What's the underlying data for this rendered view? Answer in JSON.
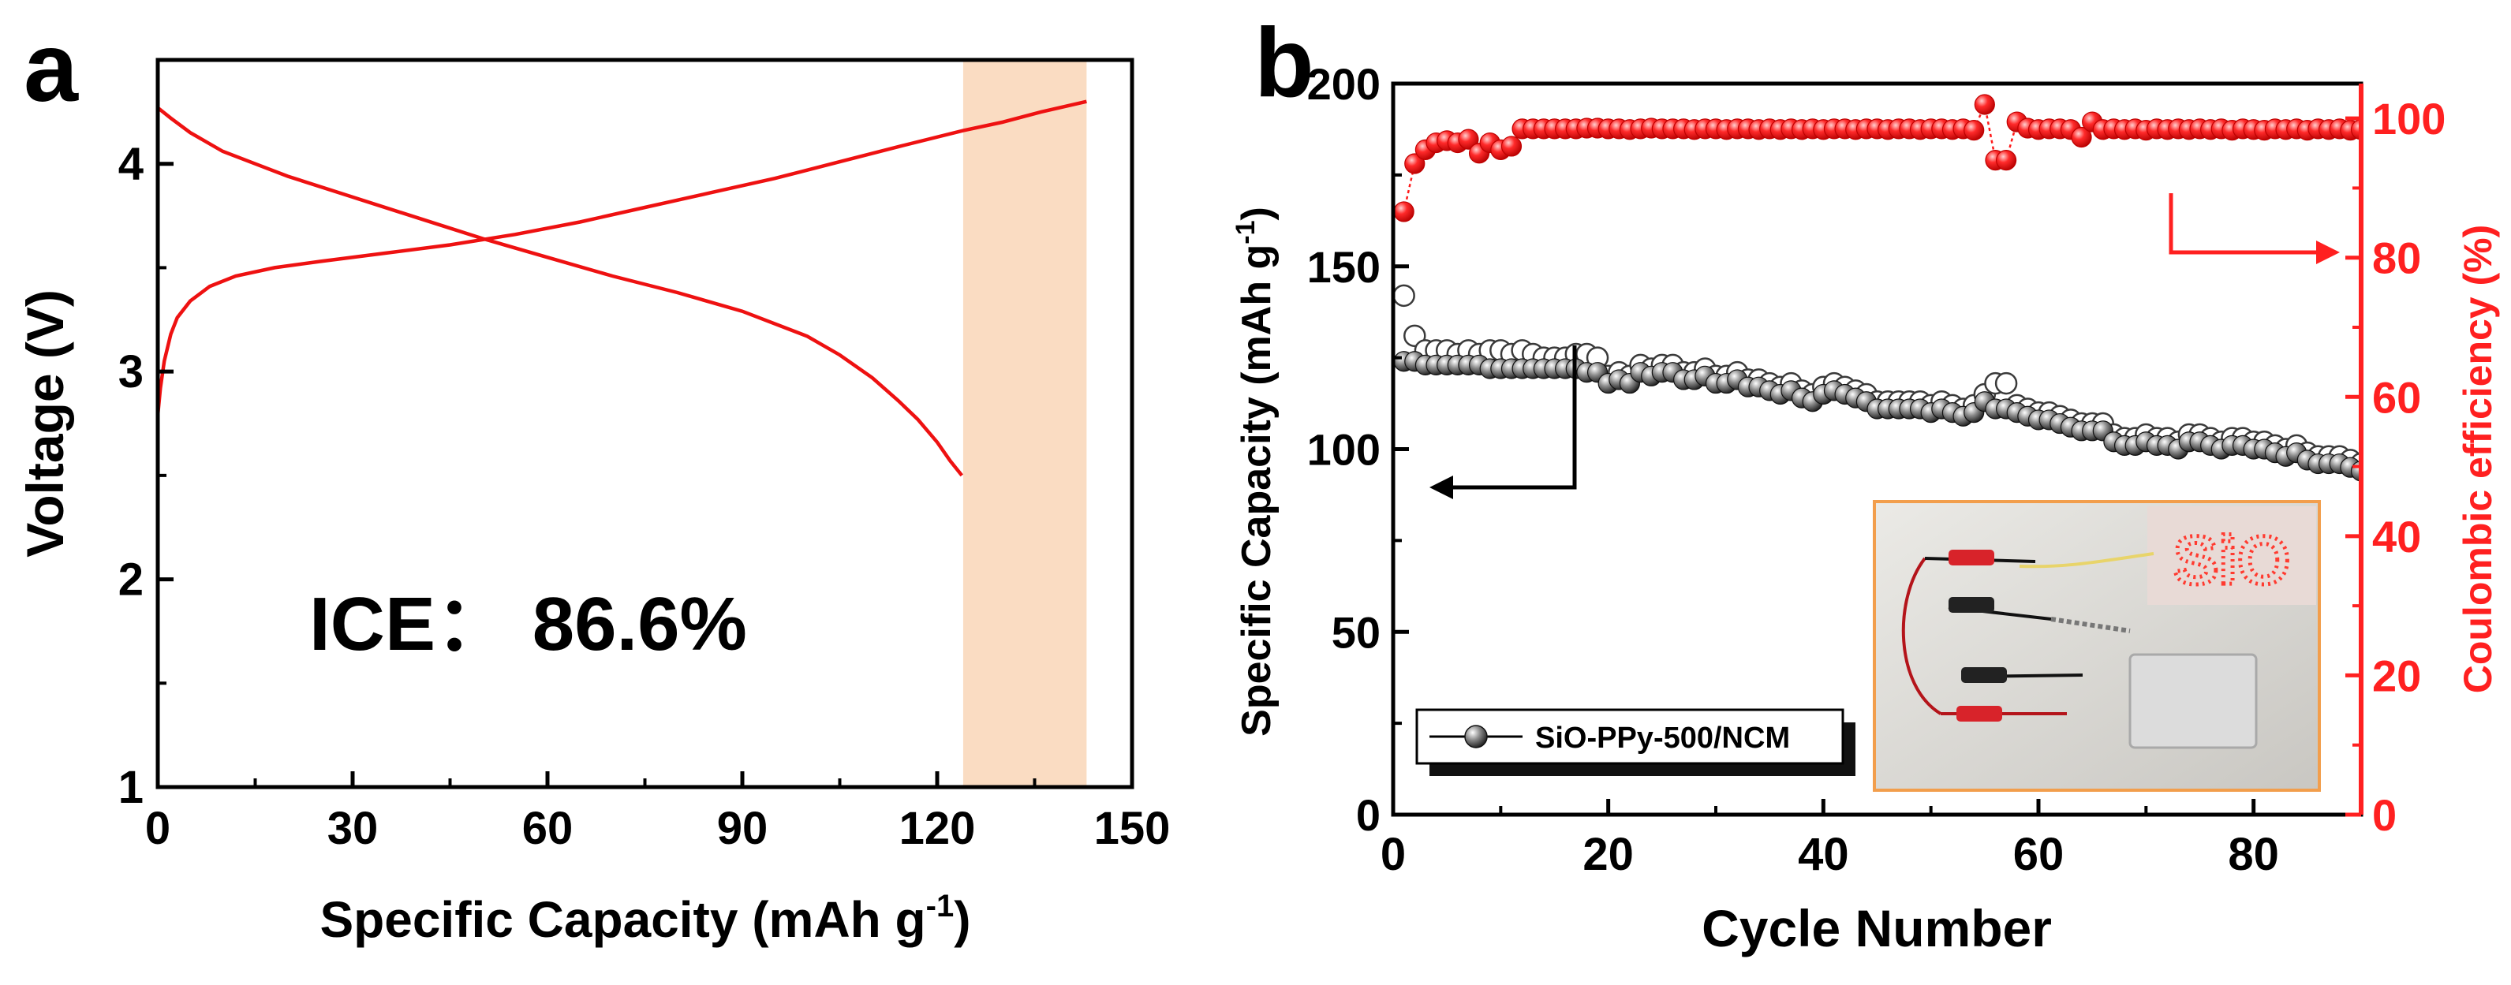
{
  "chart_data": [
    {
      "type": "line",
      "panel_label": "a",
      "title": "",
      "xlabel": "Specific Capacity (mAh g",
      "xlabel_sup": "-1",
      "xlabel_close": ")",
      "ylabel": "Voltage (V)",
      "xlim": [
        0,
        150
      ],
      "ylim": [
        1,
        4.5
      ],
      "x_ticks": [
        "0",
        "30",
        "60",
        "90",
        "120",
        "150"
      ],
      "y_ticks": [
        "1",
        "2",
        "3",
        "4"
      ],
      "annotation": "ICE： 86.6%",
      "highlight_band": {
        "x_range": [
          124,
          143
        ],
        "color": "#fadcc2"
      },
      "line_color": "#ee1111",
      "series": [
        {
          "curve": "charge",
          "x": [
            0,
            0.4,
            1,
            2,
            3,
            5,
            8,
            12,
            18,
            25,
            35,
            45,
            55,
            65,
            75,
            85,
            95,
            105,
            115,
            124,
            130,
            136,
            143
          ],
          "y": [
            2.79,
            2.92,
            3.05,
            3.18,
            3.26,
            3.34,
            3.41,
            3.46,
            3.5,
            3.53,
            3.57,
            3.61,
            3.66,
            3.72,
            3.79,
            3.86,
            3.93,
            4.01,
            4.09,
            4.16,
            4.2,
            4.25,
            4.3
          ]
        },
        {
          "curve": "discharge",
          "x": [
            0,
            2,
            5,
            10,
            15,
            20,
            30,
            40,
            50,
            60,
            70,
            80,
            90,
            100,
            105,
            110,
            114,
            117,
            120,
            122,
            123.8
          ],
          "y": [
            4.27,
            4.22,
            4.15,
            4.06,
            4.0,
            3.94,
            3.84,
            3.74,
            3.64,
            3.55,
            3.46,
            3.38,
            3.29,
            3.17,
            3.08,
            2.97,
            2.86,
            2.77,
            2.66,
            2.57,
            2.5
          ]
        }
      ]
    },
    {
      "type": "scatter",
      "panel_label": "b",
      "title": "",
      "xlabel": "Cycle Number",
      "ylabel": "Specific Capacity (mAh g",
      "ylabel_sup": "-1",
      "ylabel_close": ")",
      "y2label": "Coulombic efficiency (%)",
      "xlim": [
        0,
        90
      ],
      "ylim": [
        0,
        200
      ],
      "y2lim": [
        0,
        105
      ],
      "x_ticks": [
        "0",
        "20",
        "40",
        "60",
        "80"
      ],
      "y_ticks": [
        "0",
        "50",
        "100",
        "150",
        "200"
      ],
      "y2_ticks": [
        "0",
        "20",
        "40",
        "60",
        "80",
        "100"
      ],
      "legend": {
        "placement": "bottom-left",
        "entries": [
          "SiO-PPy-500/NCM"
        ]
      },
      "inset_photo": {
        "display_text": "SiO"
      },
      "colors": {
        "capacity": "#3a3a3a",
        "efficiency": "#ff1a1a",
        "right_axis": "#ff2020"
      },
      "series": [
        {
          "name": "SiO-PPy-500/NCM",
          "measure": "charge capacity",
          "axis": "left",
          "x": [
            1,
            2,
            3,
            4,
            5,
            6,
            7,
            8,
            9,
            10,
            11,
            12,
            13,
            14,
            15,
            16,
            17,
            18,
            19,
            20,
            21,
            22,
            23,
            24,
            25,
            26,
            27,
            28,
            29,
            30,
            31,
            32,
            33,
            34,
            35,
            36,
            37,
            38,
            39,
            40,
            41,
            42,
            43,
            44,
            45,
            46,
            47,
            48,
            49,
            50,
            51,
            52,
            53,
            54,
            55,
            56,
            57,
            58,
            59,
            60,
            61,
            62,
            63,
            64,
            65,
            66,
            67,
            68,
            69,
            70,
            71,
            72,
            73,
            74,
            75,
            76,
            77,
            78,
            79,
            80,
            81,
            82,
            83,
            84,
            85,
            86,
            87,
            88,
            89,
            90
          ],
          "y": [
            142,
            131,
            127,
            127,
            127,
            126,
            127,
            126,
            127,
            127,
            126,
            127,
            126,
            125,
            125,
            125,
            126,
            126,
            125,
            120,
            121,
            120,
            123,
            122,
            123,
            123,
            121,
            121,
            122,
            120,
            120,
            121,
            119,
            119,
            118,
            117,
            118,
            116,
            115,
            117,
            118,
            117,
            116,
            115,
            113,
            113,
            113,
            113,
            113,
            112,
            113,
            112,
            111,
            112,
            115,
            118,
            118,
            112,
            111,
            110,
            110,
            109,
            108,
            107,
            107,
            107,
            104,
            103,
            103,
            104,
            103,
            103,
            102,
            104,
            104,
            103,
            102,
            103,
            103,
            102,
            102,
            101,
            100,
            101,
            99,
            98,
            98,
            98,
            97,
            96
          ]
        },
        {
          "name": "",
          "measure": "discharge capacity",
          "axis": "left",
          "x": [
            1,
            2,
            3,
            4,
            5,
            6,
            7,
            8,
            9,
            10,
            11,
            12,
            13,
            14,
            15,
            16,
            17,
            18,
            19,
            20,
            21,
            22,
            23,
            24,
            25,
            26,
            27,
            28,
            29,
            30,
            31,
            32,
            33,
            34,
            35,
            36,
            37,
            38,
            39,
            40,
            41,
            42,
            43,
            44,
            45,
            46,
            47,
            48,
            49,
            50,
            51,
            52,
            53,
            54,
            55,
            56,
            57,
            58,
            59,
            60,
            61,
            62,
            63,
            64,
            65,
            66,
            67,
            68,
            69,
            70,
            71,
            72,
            73,
            74,
            75,
            76,
            77,
            78,
            79,
            80,
            81,
            82,
            83,
            84,
            85,
            86,
            87,
            88,
            89,
            90
          ],
          "y": [
            124,
            124,
            123,
            123,
            123,
            123,
            123,
            123,
            122,
            122,
            122,
            122,
            122,
            122,
            122,
            122,
            122,
            121,
            121,
            118,
            119,
            118,
            121,
            120,
            121,
            121,
            119,
            119,
            120,
            118,
            118,
            119,
            117,
            117,
            116,
            115,
            116,
            114,
            113,
            115,
            116,
            115,
            114,
            113,
            111,
            111,
            111,
            111,
            111,
            110,
            111,
            110,
            109,
            110,
            113,
            111,
            111,
            110,
            109,
            108,
            108,
            107,
            106,
            105,
            105,
            105,
            102,
            101,
            101,
            102,
            101,
            101,
            100,
            102,
            102,
            101,
            100,
            101,
            101,
            100,
            100,
            99,
            98,
            99,
            97,
            96,
            96,
            96,
            95,
            94
          ]
        },
        {
          "name": "",
          "measure": "coulombic efficiency",
          "axis": "right",
          "x": [
            1,
            2,
            3,
            4,
            5,
            6,
            7,
            8,
            9,
            10,
            11,
            12,
            13,
            14,
            15,
            16,
            17,
            18,
            19,
            20,
            21,
            22,
            23,
            24,
            25,
            26,
            27,
            28,
            29,
            30,
            31,
            32,
            33,
            34,
            35,
            36,
            37,
            38,
            39,
            40,
            41,
            42,
            43,
            44,
            45,
            46,
            47,
            48,
            49,
            50,
            51,
            52,
            53,
            54,
            55,
            56,
            57,
            58,
            59,
            60,
            61,
            62,
            63,
            64,
            65,
            66,
            67,
            68,
            69,
            70,
            71,
            72,
            73,
            74,
            75,
            76,
            77,
            78,
            79,
            80,
            81,
            82,
            83,
            84,
            85,
            86,
            87,
            88,
            89,
            90
          ],
          "y": [
            86.6,
            93.5,
            95.5,
            96.5,
            96.8,
            96.5,
            97,
            95,
            96.5,
            95.5,
            96,
            98.5,
            98.5,
            98.5,
            98.5,
            98.5,
            98.5,
            98.6,
            98.6,
            98.5,
            98.5,
            98.4,
            98.5,
            98.6,
            98.5,
            98.5,
            98.5,
            98.4,
            98.5,
            98.5,
            98.4,
            98.5,
            98.5,
            98.4,
            98.5,
            98.4,
            98.5,
            98.4,
            98.5,
            98.4,
            98.5,
            98.5,
            98.4,
            98.5,
            98.5,
            98.4,
            98.5,
            98.5,
            98.4,
            98.5,
            98.5,
            98.4,
            98.5,
            98.3,
            102,
            94,
            94,
            99.5,
            98.6,
            98.4,
            98.5,
            98.5,
            98.4,
            97.3,
            99.5,
            98.4,
            98.5,
            98.4,
            98.5,
            98.3,
            98.5,
            98.4,
            98.5,
            98.4,
            98.5,
            98.4,
            98.5,
            98.3,
            98.5,
            98.4,
            98.3,
            98.5,
            98.4,
            98.5,
            98.3,
            98.5,
            98.4,
            98.5,
            98.3,
            98.4
          ]
        }
      ]
    }
  ]
}
